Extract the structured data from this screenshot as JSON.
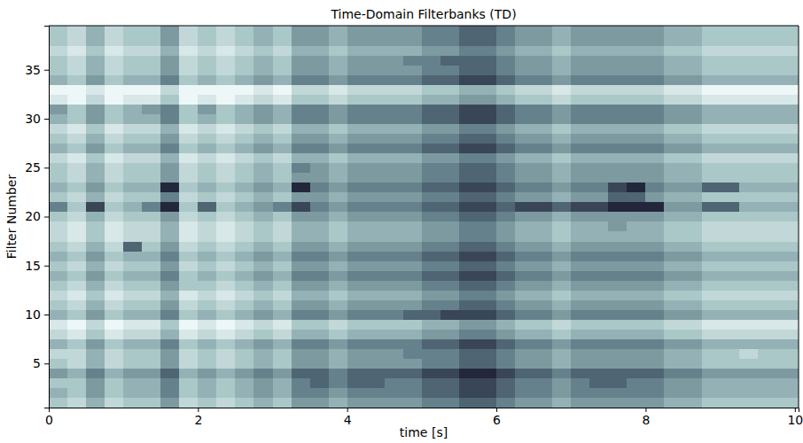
{
  "chart_data": {
    "type": "heatmap",
    "title": "Time-Domain Filterbanks (TD)",
    "x_label": "time [s]",
    "y_label": "Filter Number",
    "x": [
      0.125,
      0.375,
      0.625,
      0.875,
      1.125,
      1.375,
      1.625,
      1.875,
      2.125,
      2.375,
      2.625,
      2.875,
      3.125,
      3.375,
      3.625,
      3.875,
      4.125,
      4.375,
      4.625,
      4.875,
      5.125,
      5.375,
      5.625,
      5.875,
      6.125,
      6.375,
      6.625,
      6.875,
      7.125,
      7.375,
      7.625,
      7.875,
      8.125,
      8.375,
      8.625,
      8.875,
      9.125,
      9.375,
      9.625,
      9.875
    ],
    "y": [
      1,
      2,
      3,
      4,
      5,
      6,
      7,
      8,
      9,
      10,
      11,
      12,
      13,
      14,
      15,
      16,
      17,
      18,
      19,
      20,
      21,
      22,
      23,
      24,
      25,
      26,
      27,
      28,
      29,
      30,
      31,
      32,
      33,
      34,
      35,
      36,
      37,
      38,
      39
    ],
    "xlim": [
      0,
      10.05
    ],
    "xticks": [
      0,
      2,
      4,
      6,
      8,
      10
    ],
    "ylim": [
      0.5,
      39.5
    ],
    "yticks": [
      5,
      10,
      15,
      20,
      25,
      30,
      35
    ],
    "zlim": [
      0,
      9
    ],
    "cells": [
      [
        3,
        2,
        4,
        2,
        3,
        3,
        5,
        2,
        3,
        2,
        3,
        4,
        3,
        5,
        5,
        4,
        5,
        5,
        5,
        5,
        6,
        6,
        7,
        7,
        6,
        5,
        5,
        4,
        5,
        5,
        5,
        5,
        5,
        4,
        4,
        3,
        3,
        3,
        3,
        3
      ],
      [
        4,
        3,
        5,
        3,
        4,
        4,
        6,
        3,
        4,
        3,
        4,
        5,
        4,
        6,
        6,
        5,
        6,
        6,
        6,
        6,
        7,
        7,
        8,
        8,
        7,
        6,
        6,
        5,
        6,
        6,
        6,
        6,
        6,
        5,
        5,
        4,
        4,
        4,
        4,
        4
      ],
      [
        3,
        3,
        5,
        3,
        4,
        4,
        6,
        3,
        4,
        3,
        4,
        5,
        4,
        6,
        7,
        6,
        7,
        7,
        6,
        6,
        7,
        7,
        8,
        8,
        7,
        6,
        6,
        5,
        6,
        7,
        7,
        6,
        6,
        5,
        5,
        4,
        4,
        4,
        4,
        4
      ],
      [
        5,
        4,
        6,
        4,
        5,
        5,
        7,
        4,
        5,
        4,
        5,
        6,
        5,
        7,
        7,
        6,
        7,
        7,
        7,
        7,
        8,
        8,
        9,
        9,
        8,
        7,
        7,
        6,
        7,
        7,
        7,
        7,
        7,
        6,
        6,
        5,
        5,
        5,
        5,
        5
      ],
      [
        3,
        2,
        4,
        2,
        3,
        3,
        5,
        2,
        3,
        2,
        3,
        4,
        3,
        5,
        5,
        4,
        5,
        5,
        5,
        5,
        6,
        6,
        7,
        7,
        6,
        5,
        5,
        4,
        5,
        5,
        5,
        5,
        5,
        4,
        4,
        3,
        3,
        3,
        3,
        3
      ],
      [
        2,
        2,
        4,
        2,
        3,
        3,
        5,
        2,
        3,
        2,
        3,
        4,
        3,
        5,
        5,
        4,
        5,
        5,
        5,
        6,
        6,
        6,
        7,
        7,
        6,
        5,
        5,
        4,
        5,
        5,
        5,
        5,
        5,
        4,
        4,
        3,
        3,
        2,
        3,
        3
      ],
      [
        4,
        3,
        5,
        3,
        4,
        4,
        6,
        3,
        4,
        3,
        4,
        5,
        4,
        6,
        6,
        5,
        6,
        6,
        6,
        6,
        7,
        7,
        8,
        8,
        7,
        6,
        6,
        5,
        6,
        6,
        6,
        6,
        6,
        5,
        5,
        4,
        4,
        4,
        4,
        4
      ],
      [
        2,
        1,
        3,
        1,
        2,
        2,
        4,
        1,
        2,
        1,
        2,
        3,
        2,
        4,
        4,
        3,
        4,
        4,
        4,
        4,
        5,
        5,
        6,
        6,
        5,
        4,
        4,
        3,
        4,
        4,
        4,
        4,
        4,
        3,
        3,
        2,
        2,
        2,
        2,
        2
      ],
      [
        1,
        0,
        2,
        0,
        1,
        1,
        3,
        0,
        1,
        0,
        1,
        2,
        1,
        3,
        3,
        2,
        3,
        3,
        3,
        3,
        4,
        4,
        5,
        5,
        4,
        3,
        3,
        2,
        3,
        3,
        3,
        3,
        3,
        2,
        2,
        1,
        1,
        1,
        1,
        1
      ],
      [
        4,
        3,
        5,
        3,
        4,
        4,
        6,
        3,
        4,
        3,
        4,
        5,
        4,
        6,
        6,
        5,
        6,
        6,
        6,
        7,
        7,
        8,
        8,
        8,
        7,
        6,
        6,
        5,
        6,
        6,
        6,
        6,
        6,
        5,
        5,
        4,
        4,
        4,
        4,
        4
      ],
      [
        3,
        2,
        4,
        2,
        3,
        3,
        5,
        2,
        3,
        2,
        3,
        4,
        3,
        5,
        5,
        4,
        5,
        5,
        5,
        5,
        6,
        6,
        7,
        7,
        6,
        5,
        5,
        4,
        5,
        5,
        5,
        5,
        5,
        4,
        4,
        3,
        3,
        3,
        3,
        3
      ],
      [
        2,
        1,
        3,
        1,
        2,
        2,
        4,
        1,
        2,
        1,
        2,
        3,
        2,
        4,
        4,
        3,
        4,
        4,
        4,
        4,
        5,
        5,
        6,
        6,
        5,
        4,
        4,
        3,
        4,
        4,
        4,
        4,
        4,
        3,
        3,
        2,
        2,
        2,
        2,
        2
      ],
      [
        3,
        2,
        4,
        2,
        3,
        3,
        5,
        3,
        3,
        2,
        3,
        4,
        3,
        5,
        5,
        4,
        5,
        5,
        5,
        5,
        6,
        6,
        7,
        7,
        6,
        5,
        5,
        4,
        5,
        5,
        5,
        5,
        5,
        4,
        4,
        3,
        3,
        3,
        3,
        3
      ],
      [
        4,
        3,
        5,
        3,
        4,
        4,
        6,
        3,
        4,
        3,
        4,
        5,
        4,
        6,
        6,
        5,
        6,
        6,
        6,
        6,
        7,
        7,
        8,
        8,
        7,
        6,
        6,
        5,
        6,
        6,
        6,
        6,
        6,
        5,
        5,
        4,
        4,
        4,
        4,
        4
      ],
      [
        3,
        2,
        4,
        2,
        3,
        3,
        5,
        2,
        3,
        2,
        3,
        4,
        3,
        5,
        5,
        4,
        5,
        5,
        5,
        5,
        6,
        6,
        7,
        7,
        6,
        5,
        5,
        4,
        5,
        5,
        5,
        5,
        5,
        4,
        4,
        3,
        3,
        3,
        3,
        3
      ],
      [
        4,
        3,
        5,
        3,
        4,
        4,
        6,
        3,
        4,
        3,
        4,
        5,
        4,
        6,
        6,
        5,
        6,
        6,
        6,
        6,
        7,
        7,
        8,
        8,
        7,
        6,
        6,
        5,
        6,
        6,
        6,
        6,
        6,
        5,
        5,
        4,
        4,
        4,
        4,
        4
      ],
      [
        3,
        2,
        4,
        2,
        7,
        3,
        5,
        2,
        3,
        2,
        3,
        4,
        3,
        5,
        5,
        4,
        5,
        5,
        5,
        5,
        6,
        6,
        7,
        7,
        6,
        5,
        5,
        4,
        5,
        5,
        5,
        5,
        5,
        4,
        4,
        3,
        3,
        3,
        3,
        3
      ],
      [
        2,
        1,
        3,
        1,
        2,
        2,
        4,
        1,
        2,
        1,
        2,
        3,
        2,
        4,
        4,
        3,
        4,
        4,
        4,
        4,
        5,
        5,
        6,
        6,
        5,
        4,
        4,
        3,
        4,
        4,
        4,
        4,
        4,
        3,
        3,
        2,
        2,
        2,
        2,
        2
      ],
      [
        2,
        1,
        3,
        1,
        2,
        2,
        4,
        1,
        2,
        1,
        2,
        3,
        2,
        4,
        4,
        3,
        4,
        4,
        4,
        4,
        5,
        5,
        6,
        6,
        5,
        4,
        4,
        3,
        4,
        4,
        5,
        4,
        4,
        3,
        3,
        2,
        2,
        2,
        2,
        2
      ],
      [
        3,
        2,
        4,
        2,
        3,
        3,
        5,
        2,
        3,
        2,
        3,
        4,
        3,
        5,
        5,
        4,
        5,
        5,
        5,
        5,
        6,
        6,
        7,
        7,
        6,
        5,
        5,
        4,
        5,
        5,
        5,
        5,
        5,
        4,
        4,
        3,
        3,
        3,
        3,
        3
      ],
      [
        6,
        3,
        8,
        3,
        4,
        6,
        9,
        3,
        7,
        3,
        4,
        5,
        6,
        8,
        6,
        5,
        6,
        6,
        6,
        6,
        7,
        7,
        8,
        8,
        7,
        8,
        8,
        7,
        8,
        8,
        9,
        9,
        9,
        5,
        5,
        7,
        7,
        4,
        4,
        4
      ],
      [
        3,
        2,
        4,
        2,
        3,
        3,
        6,
        2,
        3,
        2,
        3,
        4,
        3,
        5,
        5,
        4,
        5,
        5,
        5,
        5,
        6,
        6,
        7,
        7,
        6,
        5,
        5,
        4,
        5,
        5,
        7,
        7,
        5,
        4,
        4,
        3,
        3,
        3,
        3,
        3
      ],
      [
        4,
        3,
        5,
        3,
        4,
        4,
        9,
        3,
        4,
        3,
        4,
        5,
        4,
        9,
        6,
        5,
        6,
        6,
        6,
        6,
        7,
        7,
        8,
        8,
        7,
        6,
        6,
        5,
        6,
        6,
        8,
        9,
        6,
        5,
        5,
        7,
        7,
        4,
        4,
        4
      ],
      [
        3,
        2,
        4,
        2,
        3,
        3,
        5,
        2,
        3,
        2,
        3,
        4,
        3,
        5,
        5,
        4,
        5,
        5,
        5,
        5,
        6,
        6,
        7,
        7,
        6,
        5,
        5,
        4,
        5,
        5,
        5,
        5,
        5,
        4,
        4,
        3,
        3,
        3,
        3,
        3
      ],
      [
        3,
        2,
        4,
        2,
        3,
        3,
        5,
        2,
        3,
        2,
        3,
        4,
        3,
        6,
        5,
        4,
        5,
        5,
        5,
        5,
        6,
        6,
        7,
        7,
        6,
        5,
        5,
        4,
        5,
        5,
        5,
        5,
        5,
        4,
        4,
        3,
        3,
        3,
        3,
        3
      ],
      [
        2,
        1,
        3,
        1,
        2,
        2,
        4,
        1,
        2,
        1,
        2,
        3,
        2,
        4,
        4,
        3,
        4,
        4,
        4,
        4,
        5,
        5,
        6,
        6,
        5,
        4,
        4,
        3,
        4,
        4,
        4,
        4,
        4,
        3,
        3,
        2,
        2,
        2,
        2,
        2
      ],
      [
        4,
        3,
        5,
        3,
        4,
        4,
        6,
        3,
        4,
        3,
        4,
        5,
        4,
        6,
        6,
        5,
        6,
        6,
        6,
        6,
        7,
        7,
        8,
        8,
        7,
        6,
        6,
        5,
        6,
        6,
        6,
        6,
        6,
        5,
        5,
        4,
        4,
        4,
        4,
        4
      ],
      [
        3,
        2,
        4,
        2,
        3,
        3,
        5,
        2,
        3,
        2,
        3,
        4,
        3,
        5,
        5,
        4,
        5,
        5,
        5,
        5,
        6,
        6,
        7,
        7,
        6,
        5,
        5,
        4,
        5,
        5,
        5,
        5,
        5,
        4,
        4,
        3,
        3,
        3,
        3,
        3
      ],
      [
        2,
        1,
        3,
        1,
        2,
        2,
        4,
        1,
        2,
        1,
        2,
        3,
        2,
        4,
        4,
        3,
        4,
        4,
        4,
        4,
        5,
        5,
        6,
        6,
        5,
        4,
        4,
        3,
        4,
        4,
        4,
        4,
        4,
        3,
        3,
        2,
        2,
        2,
        2,
        2
      ],
      [
        4,
        3,
        5,
        3,
        4,
        4,
        6,
        3,
        4,
        3,
        4,
        5,
        4,
        6,
        6,
        5,
        6,
        6,
        6,
        6,
        7,
        7,
        8,
        8,
        7,
        6,
        6,
        5,
        6,
        6,
        6,
        6,
        6,
        5,
        5,
        4,
        4,
        4,
        4,
        4
      ],
      [
        5,
        3,
        5,
        3,
        4,
        5,
        6,
        3,
        5,
        3,
        4,
        5,
        4,
        6,
        6,
        5,
        6,
        6,
        6,
        6,
        7,
        7,
        8,
        8,
        7,
        6,
        6,
        5,
        6,
        6,
        6,
        6,
        6,
        5,
        5,
        4,
        4,
        4,
        4,
        4
      ],
      [
        1,
        0,
        2,
        0,
        1,
        1,
        3,
        0,
        1,
        0,
        1,
        2,
        1,
        3,
        3,
        2,
        3,
        3,
        3,
        3,
        4,
        4,
        5,
        5,
        4,
        3,
        3,
        2,
        3,
        3,
        3,
        3,
        3,
        2,
        2,
        1,
        1,
        1,
        1,
        1
      ],
      [
        0,
        0,
        1,
        0,
        0,
        0,
        2,
        0,
        0,
        0,
        0,
        1,
        0,
        2,
        2,
        1,
        2,
        2,
        2,
        2,
        3,
        3,
        4,
        4,
        3,
        2,
        2,
        1,
        2,
        2,
        2,
        2,
        2,
        1,
        1,
        0,
        0,
        0,
        0,
        0
      ],
      [
        4,
        3,
        5,
        3,
        4,
        4,
        6,
        3,
        4,
        3,
        4,
        5,
        4,
        6,
        6,
        5,
        6,
        6,
        6,
        6,
        7,
        7,
        8,
        8,
        7,
        6,
        6,
        5,
        6,
        6,
        6,
        6,
        6,
        5,
        5,
        4,
        4,
        4,
        4,
        4
      ],
      [
        3,
        2,
        4,
        2,
        3,
        3,
        5,
        2,
        3,
        2,
        3,
        4,
        3,
        5,
        5,
        4,
        5,
        5,
        5,
        5,
        6,
        6,
        7,
        7,
        6,
        5,
        5,
        4,
        5,
        5,
        5,
        5,
        5,
        4,
        4,
        3,
        3,
        3,
        3,
        3
      ],
      [
        3,
        2,
        4,
        2,
        3,
        3,
        5,
        2,
        3,
        2,
        3,
        4,
        3,
        5,
        5,
        4,
        5,
        5,
        5,
        6,
        6,
        7,
        7,
        7,
        6,
        5,
        5,
        4,
        5,
        5,
        5,
        5,
        5,
        4,
        4,
        3,
        3,
        3,
        3,
        3
      ],
      [
        2,
        1,
        3,
        1,
        2,
        2,
        4,
        1,
        2,
        1,
        2,
        3,
        2,
        4,
        4,
        3,
        4,
        4,
        4,
        4,
        5,
        5,
        6,
        6,
        5,
        4,
        4,
        3,
        4,
        4,
        4,
        4,
        4,
        3,
        3,
        2,
        2,
        2,
        2,
        2
      ],
      [
        3,
        2,
        4,
        2,
        3,
        3,
        5,
        2,
        3,
        2,
        3,
        4,
        3,
        5,
        5,
        4,
        5,
        5,
        5,
        5,
        6,
        6,
        7,
        7,
        6,
        5,
        5,
        4,
        5,
        5,
        5,
        5,
        5,
        4,
        4,
        3,
        3,
        3,
        3,
        3
      ],
      [
        3,
        2,
        4,
        2,
        3,
        3,
        5,
        2,
        3,
        2,
        3,
        4,
        3,
        5,
        5,
        4,
        5,
        5,
        5,
        5,
        6,
        6,
        7,
        7,
        6,
        5,
        5,
        4,
        5,
        5,
        5,
        5,
        5,
        4,
        4,
        3,
        3,
        3,
        3,
        3
      ]
    ]
  }
}
